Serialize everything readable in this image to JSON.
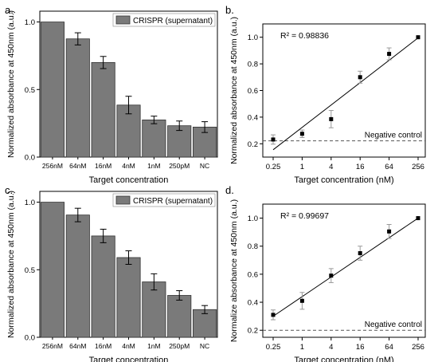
{
  "panels": [
    {
      "letter": "a."
    },
    {
      "letter": "b."
    },
    {
      "letter": "c."
    },
    {
      "letter": "d."
    }
  ],
  "chart_data": [
    {
      "type": "bar",
      "panel": "a.",
      "legend": "CRISPR (supernatant)",
      "legend_position": "top-right",
      "ylabel": "Normalized absorbance at 450nm (a.u.)",
      "xlabel": "Target concentration",
      "categories": [
        "256nM",
        "64nM",
        "16nM",
        "4nM",
        "1nM",
        "250pM",
        "NC"
      ],
      "values": [
        1.0,
        0.875,
        0.7,
        0.385,
        0.275,
        0.232,
        0.222
      ],
      "errors": [
        0.0,
        0.045,
        0.045,
        0.065,
        0.028,
        0.035,
        0.04
      ],
      "ylim": [
        0,
        1.08
      ],
      "yticks": [
        0,
        0.5,
        1.0
      ],
      "ytick_labels": [
        "0.0",
        "0.5",
        "1.0"
      ],
      "bar_color": "#7a7a7a"
    },
    {
      "type": "scatter",
      "panel": "b.",
      "annotation": "R² = 0.98836",
      "baseline_label": "Negative control",
      "baseline_value": 0.222,
      "ylabel": "Normalized absorbance at 450nm (a.u.)",
      "xlabel": "Target concentration (nM)",
      "x_scale": "log4",
      "xticks": [
        0.25,
        1,
        4,
        16,
        64,
        256
      ],
      "xtick_labels": [
        "0.25",
        "1",
        "4",
        "16",
        "64",
        "256"
      ],
      "x": [
        0.25,
        1,
        4,
        16,
        64,
        256
      ],
      "y": [
        0.232,
        0.275,
        0.385,
        0.7,
        0.875,
        1.0
      ],
      "errors": [
        0.035,
        0.028,
        0.065,
        0.045,
        0.045,
        0.0
      ],
      "fit_line": {
        "x": [
          0.25,
          256
        ],
        "y": [
          0.155,
          0.995
        ]
      },
      "ylim": [
        0.1,
        1.1
      ],
      "yticks": [
        0.2,
        0.4,
        0.6,
        0.8,
        1.0
      ],
      "ytick_labels": [
        "0.2",
        "0.4",
        "0.6",
        "0.8",
        "1.0"
      ]
    },
    {
      "type": "bar",
      "panel": "c.",
      "legend": "CRISPR (supernatant)",
      "legend_position": "top-right",
      "ylabel": "Normalized absorbance at 450nm (a.u.)",
      "xlabel": "Target concentration",
      "categories": [
        "256nM",
        "64nM",
        "16nM",
        "4nM",
        "1nM",
        "250pM",
        "NC"
      ],
      "values": [
        1.0,
        0.905,
        0.75,
        0.59,
        0.41,
        0.31,
        0.205
      ],
      "errors": [
        0.0,
        0.05,
        0.05,
        0.05,
        0.06,
        0.035,
        0.03
      ],
      "ylim": [
        0,
        1.08
      ],
      "yticks": [
        0,
        0.5,
        1.0
      ],
      "ytick_labels": [
        "0.0",
        "0.5",
        "1.0"
      ],
      "bar_color": "#7a7a7a"
    },
    {
      "type": "scatter",
      "panel": "d.",
      "annotation": "R² = 0.99697",
      "baseline_label": "Negative control",
      "baseline_value": 0.2,
      "ylabel": "Normalize absorbance at 450nm (a.u.)",
      "xlabel": "Target concentration (nM)",
      "x_scale": "log4",
      "xticks": [
        0.25,
        1,
        4,
        16,
        64,
        256
      ],
      "xtick_labels": [
        "0.25",
        "1",
        "4",
        "16",
        "64",
        "256"
      ],
      "x": [
        0.25,
        1,
        4,
        16,
        64,
        256
      ],
      "y": [
        0.31,
        0.41,
        0.59,
        0.75,
        0.905,
        1.0
      ],
      "errors": [
        0.035,
        0.06,
        0.05,
        0.05,
        0.05,
        0.0
      ],
      "fit_line": {
        "x": [
          0.25,
          256
        ],
        "y": [
          0.3,
          1.0
        ]
      },
      "ylim": [
        0.15,
        1.1
      ],
      "yticks": [
        0.2,
        0.4,
        0.6,
        0.8,
        1.0
      ],
      "ytick_labels": [
        "0.2",
        "0.4",
        "0.6",
        "0.8",
        "1.0"
      ]
    }
  ]
}
